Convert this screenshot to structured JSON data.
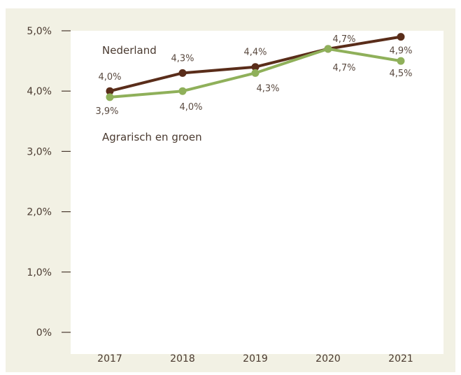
{
  "chart_data": {
    "type": "line",
    "title": "",
    "xlabel": "",
    "ylabel": "",
    "categories": [
      "2017",
      "2018",
      "2019",
      "2020",
      "2021"
    ],
    "ylim": [
      0,
      5
    ],
    "y_ticks": [
      "0%",
      "1,0%",
      "2,0%",
      "3,0%",
      "4,0%",
      "5,0%"
    ],
    "series": [
      {
        "name": "Nederland",
        "color": "#5a2d1a",
        "values": [
          4.0,
          4.3,
          4.4,
          4.7,
          4.9
        ],
        "labels": [
          "4,0%",
          "4,3%",
          "4,4%",
          "4,7%",
          "4,9%"
        ]
      },
      {
        "name": "Agrarisch en groen",
        "color": "#8fb05a",
        "values": [
          3.9,
          4.0,
          4.3,
          4.7,
          4.5
        ],
        "labels": [
          "3,9%",
          "4,0%",
          "4,3%",
          "4,7%",
          "4,5%"
        ]
      }
    ]
  }
}
